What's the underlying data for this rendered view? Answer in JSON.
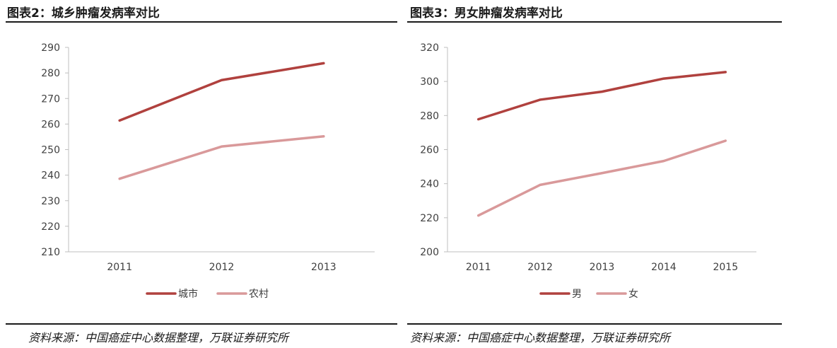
{
  "figures": [
    {
      "title": "图表2：城乡肿瘤发病率对比",
      "source": "资料来源：中国癌症中心数据整理，万联证券研究所"
    },
    {
      "title": "图表3：男女肿瘤发病率对比",
      "source": "资料来源：中国癌症中心数据整理，万联证券研究所"
    }
  ],
  "chart_data": [
    {
      "type": "line",
      "title": "图表2：城乡肿瘤发病率对比",
      "categories": [
        "2011",
        "2012",
        "2013"
      ],
      "yticks": [
        210,
        220,
        230,
        240,
        250,
        260,
        270,
        280,
        290
      ],
      "ylim": [
        210,
        290
      ],
      "grid": false,
      "legend": "bottom",
      "series": [
        {
          "name": "城市",
          "color": "#b0413e",
          "values": [
            261.4,
            277.2,
            283.8
          ]
        },
        {
          "name": "农村",
          "color": "#d9999a",
          "values": [
            238.6,
            251.2,
            255.2
          ]
        }
      ]
    },
    {
      "type": "line",
      "title": "图表3：男女肿瘤发病率对比",
      "categories": [
        "2011",
        "2012",
        "2013",
        "2014",
        "2015"
      ],
      "yticks": [
        200,
        220,
        240,
        260,
        280,
        300,
        320
      ],
      "ylim": [
        200,
        320
      ],
      "grid": false,
      "legend": "bottom",
      "series": [
        {
          "name": "男",
          "color": "#b0413e",
          "values": [
            277.8,
            289.3,
            294.0,
            301.7,
            305.5
          ]
        },
        {
          "name": "女",
          "color": "#d9999a",
          "values": [
            221.3,
            239.3,
            246.2,
            253.3,
            265.2
          ]
        }
      ]
    }
  ]
}
